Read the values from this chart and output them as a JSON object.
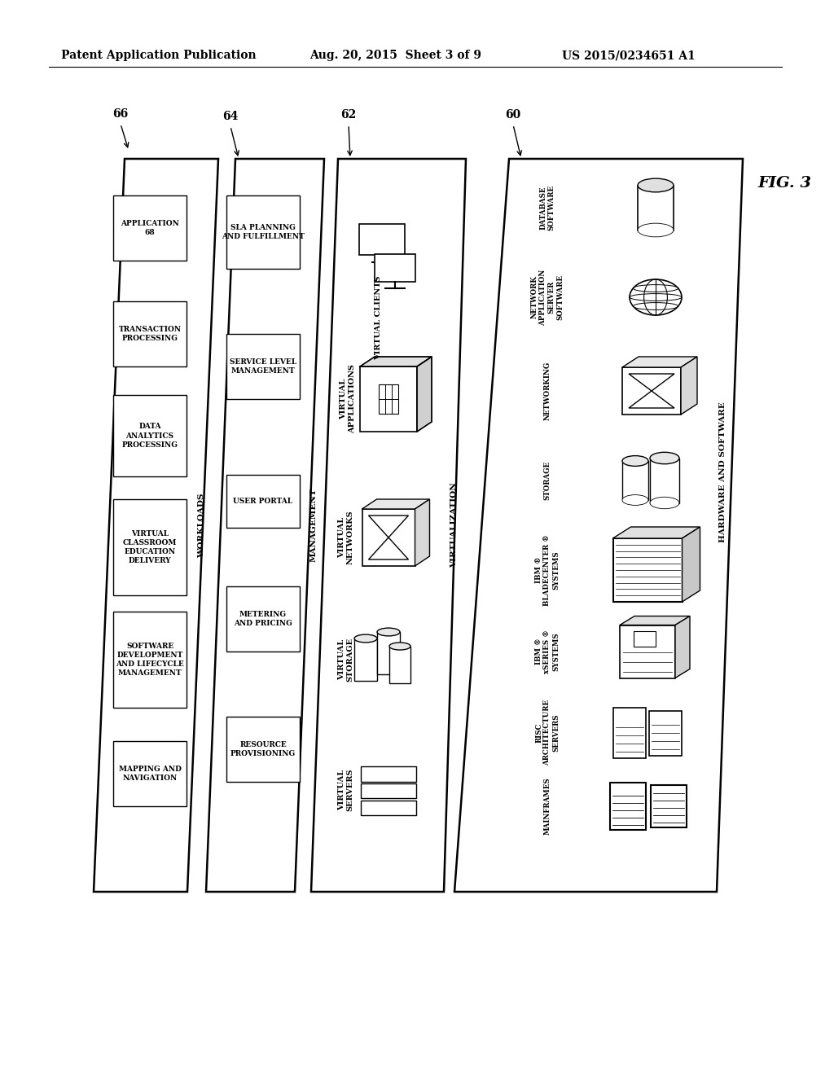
{
  "bg_color": "#ffffff",
  "header_left": "Patent Application Publication",
  "header_mid": "Aug. 20, 2015  Sheet 3 of 9",
  "header_right": "US 2015/0234651 A1",
  "fig_label": "FIG. 3",
  "workload_boxes": [
    "APPLICATION\n68",
    "TRANSACTION\nPROCESSING",
    "DATA\nANALYTICS\nPROCESSING",
    "VIRTUAL\nCLASSROOM\nEDUCATION\nDELIVERY",
    "SOFTWARE\nDEVELOPMENT\nAND LIFECYCLE\nMANAGEMENT",
    "MAPPING AND\nNAVIGATION"
  ],
  "management_boxes": [
    "SLA PLANNING\nAND FULFILLMENT",
    "SERVICE LEVEL\nMANAGEMENT",
    "USER PORTAL",
    "METERING\nAND PRICING",
    "RESOURCE\nPROVISIONING"
  ],
  "virtual_labels": [
    "VIRTUAL CLIENTS",
    "VIRTUAL\nAPPLICATIONS",
    "VIRTUAL\nNETWORKS",
    "VIRTUAL\nSTORAGE",
    "VIRTUAL\nSERVERS"
  ],
  "hw_labels": [
    "DATABASE\nSOFTWARE",
    "NETWORK\nAPPLICATION\nSERVER\nSOFTWARE",
    "NETWORKING",
    "STORAGE",
    "IBM ®\nBLADECENTER ®\nSYSTEMS",
    "IBM ®\nxSERIES ®\nSYSTEMS",
    "RISC\nARCHITECTURE\nSERVERS",
    "MAINFRAMES"
  ]
}
